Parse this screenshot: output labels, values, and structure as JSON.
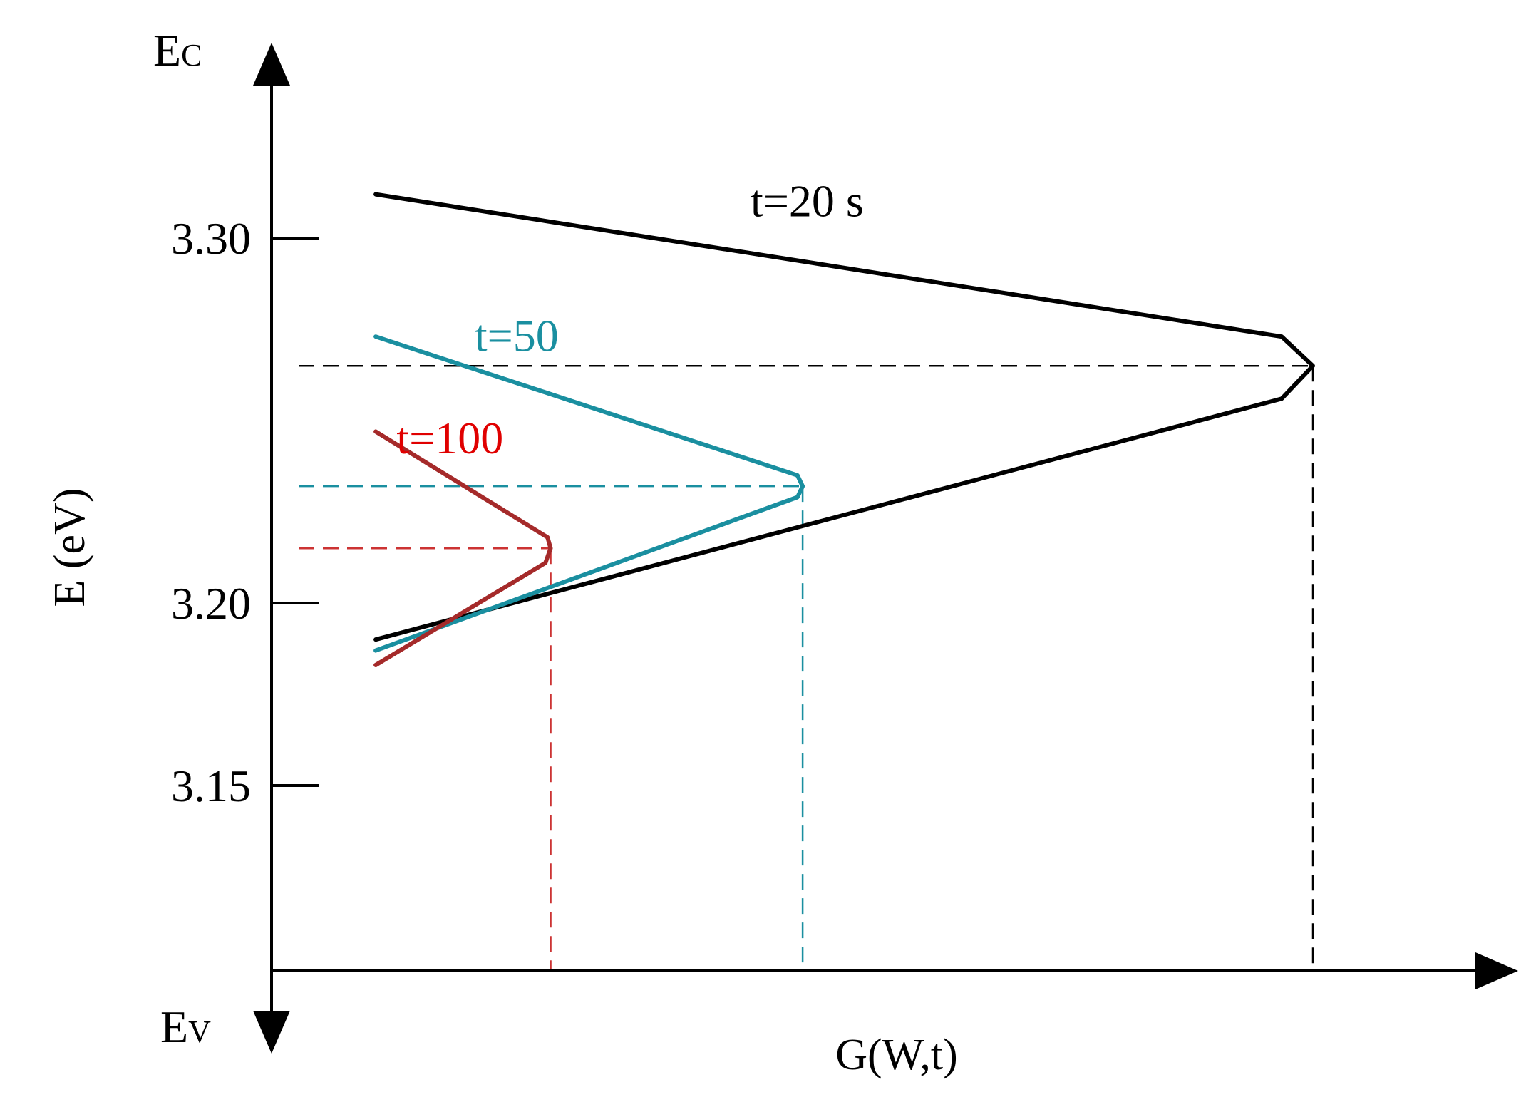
{
  "chart_data": {
    "type": "line",
    "title": "",
    "xlabel": "G(W,t)",
    "ylabel": "E (eV)",
    "axis_top_label": {
      "main": "E",
      "sub": "C"
    },
    "axis_bottom_label": {
      "main": "E",
      "sub": "V"
    },
    "yticks": [
      3.3,
      3.2,
      3.15
    ],
    "ytick_labels": [
      "3.30",
      "3.20",
      "3.15"
    ],
    "ylim": [
      3.105,
      3.325
    ],
    "xlim": [
      0,
      1
    ],
    "x_axis_ticks_shown": false,
    "grid": false,
    "legend": "none",
    "series": [
      {
        "name": "t=20 s",
        "color": "#000000",
        "points": [
          [
            0.1,
            3.312
          ],
          [
            0.97,
            3.273
          ],
          [
            1.0,
            3.265
          ],
          [
            0.97,
            3.256
          ],
          [
            0.1,
            3.19
          ]
        ],
        "peak": {
          "x": 1.0,
          "y": 3.265
        },
        "guide_color": "#000000"
      },
      {
        "name": "t=50",
        "color": "#1a8fa0",
        "points": [
          [
            0.1,
            3.273
          ],
          [
            0.505,
            3.235
          ],
          [
            0.51,
            3.232
          ],
          [
            0.505,
            3.229
          ],
          [
            0.1,
            3.187
          ]
        ],
        "peak": {
          "x": 0.51,
          "y": 3.232
        },
        "guide_color": "#1a8fa0"
      },
      {
        "name": "t=100",
        "color": "#a52a2a",
        "label_color": "#e00000",
        "points": [
          [
            0.1,
            3.247
          ],
          [
            0.265,
            3.218
          ],
          [
            0.268,
            3.215
          ],
          [
            0.263,
            3.211
          ],
          [
            0.1,
            3.183
          ]
        ],
        "peak": {
          "x": 0.268,
          "y": 3.215
        },
        "guide_color": "#cc3333"
      }
    ]
  }
}
